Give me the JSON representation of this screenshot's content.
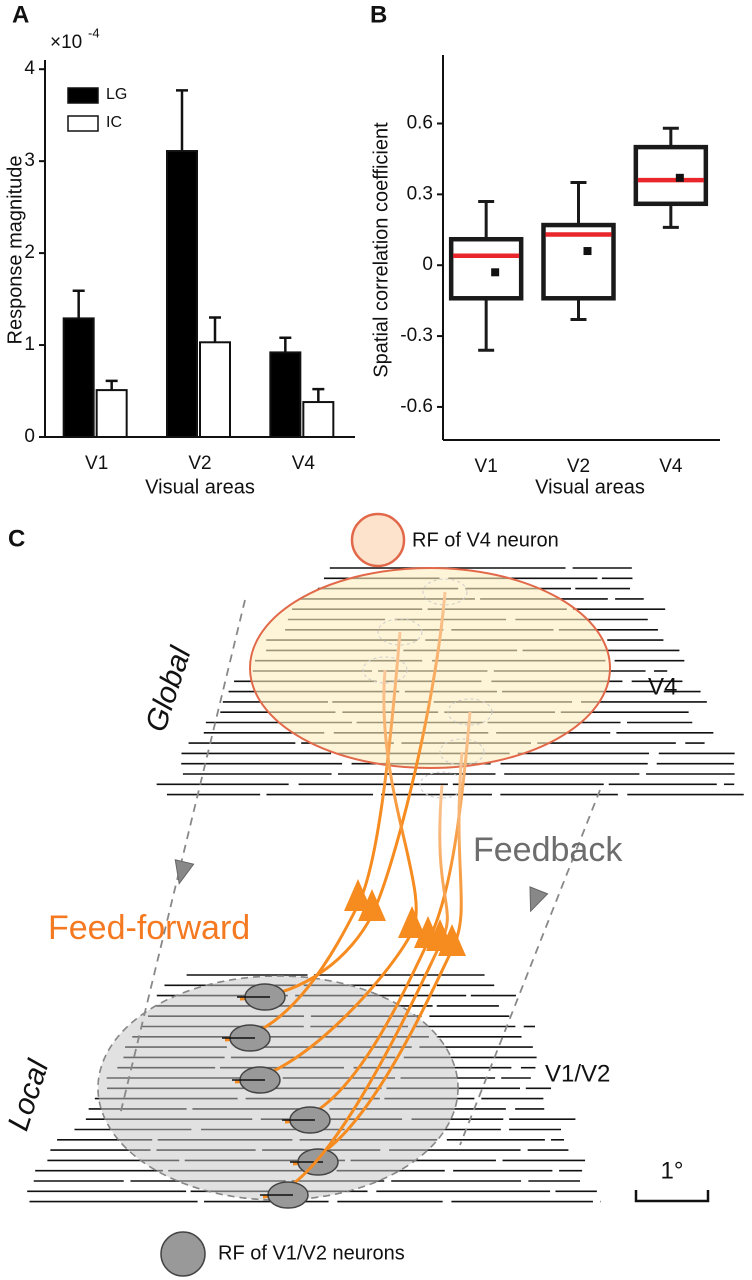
{
  "chart_data": [
    {
      "type": "bar",
      "panel": "A",
      "ylabel": "Response magnitude",
      "xlabel": "Visual areas",
      "multiplier": "×10",
      "multiplier_exp": "-4",
      "categories": [
        "V1",
        "V2",
        "V4"
      ],
      "series": [
        {
          "name": "LG",
          "color": "#000000",
          "values": [
            1.29,
            3.11,
            0.92
          ],
          "errors": [
            0.3,
            0.66,
            0.16
          ]
        },
        {
          "name": "IC",
          "color": "#ffffff",
          "values": [
            0.51,
            1.03,
            0.38
          ],
          "errors": [
            0.1,
            0.27,
            0.14
          ]
        }
      ],
      "ylim": [
        0,
        4.1
      ],
      "yticks": [
        0,
        1,
        2,
        3,
        4
      ]
    },
    {
      "type": "box",
      "panel": "B",
      "ylabel": "Spatial correlation coefficient",
      "xlabel": "Visual areas",
      "categories": [
        "V1",
        "V2",
        "V4"
      ],
      "whisker_low": [
        -0.36,
        -0.23,
        0.16
      ],
      "q1": [
        -0.14,
        -0.14,
        0.26
      ],
      "median": [
        0.04,
        0.13,
        0.36
      ],
      "q3": [
        0.11,
        0.17,
        0.5
      ],
      "whisker_high": [
        0.27,
        0.35,
        0.58
      ],
      "mean": [
        -0.03,
        0.06,
        0.37
      ],
      "color": "#1a1a1a",
      "median_color": "#e8262b",
      "ylim": [
        -0.74,
        0.89
      ],
      "yticks": [
        -0.6,
        -0.3,
        0,
        0.3,
        0.6
      ]
    }
  ],
  "diagram": {
    "panel": "C",
    "legend_top": "RF of V4 neuron",
    "global": "Global",
    "v4": "V4",
    "feedback": "Feedback",
    "feedforward": "Feed-forward",
    "local": "Local",
    "v1v2": "V1/V2",
    "scale": "1°",
    "legend_bottom": "RF of V1/V2 neurons"
  }
}
